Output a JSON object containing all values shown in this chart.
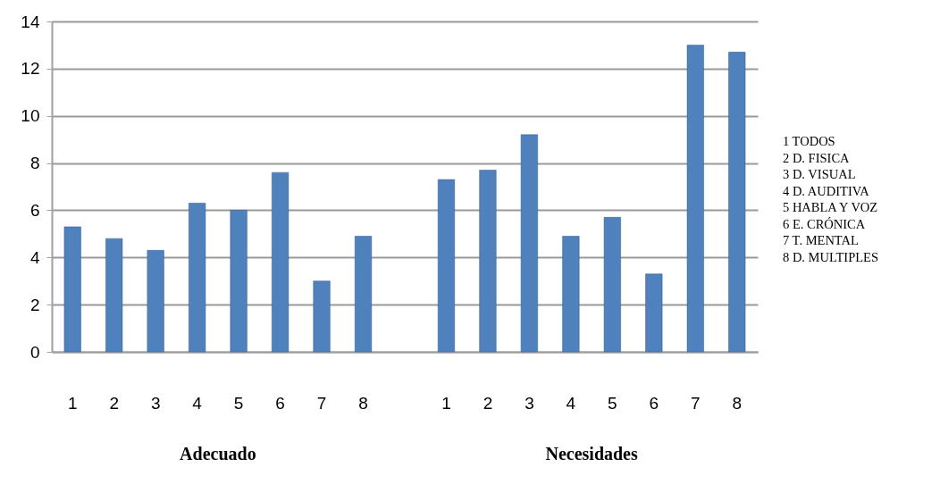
{
  "chart_data": {
    "type": "bar",
    "categories": [
      "1",
      "2",
      "3",
      "4",
      "5",
      "6",
      "7",
      "8",
      null,
      "1",
      "2",
      "3",
      "4",
      "5",
      "6",
      "7",
      "8"
    ],
    "values": [
      5.3,
      4.8,
      4.3,
      6.3,
      6.0,
      7.6,
      3.0,
      4.9,
      null,
      7.3,
      7.7,
      9.2,
      4.9,
      5.7,
      3.3,
      13.0,
      12.7
    ],
    "color": "#4f81bd",
    "ylim": [
      0,
      14
    ],
    "yticks": [
      0,
      2,
      4,
      6,
      8,
      10,
      12,
      14
    ],
    "grid": "y",
    "annotations": [
      "Adecuado",
      "Necesidades",
      "1  TODOS",
      "2  D. FISICA",
      "3  D. VISUAL",
      "4  D. AUDITIVA",
      "5  HABLA Y VOZ",
      "6  E. CRÓNICA",
      "7  T. MENTAL",
      "8  D. MULTIPLES"
    ]
  }
}
